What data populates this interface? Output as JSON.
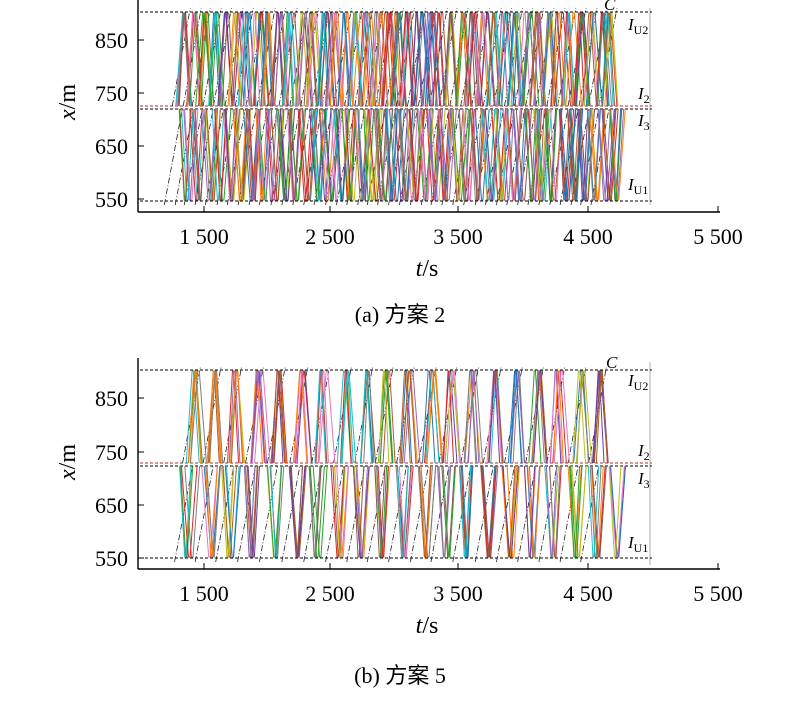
{
  "figure": {
    "panels": [
      {
        "caption": "(a) 方案 2",
        "xlabel_var": "t",
        "xlabel_unit": "/s",
        "ylabel_var": "x",
        "ylabel_unit": "/m",
        "y_ticks": [
          "850",
          "750",
          "650",
          "550"
        ],
        "x_ticks": [
          "1 500",
          "2 500",
          "3 500",
          "4 500",
          "5 500"
        ],
        "annotations": {
          "IU2": "I",
          "IU2_sub": "U2",
          "I2": "I",
          "I2_sub": "2",
          "I3": "I",
          "I3_sub": "3",
          "IU1": "I",
          "IU1_sub": "U1",
          "C": "C"
        }
      },
      {
        "caption": "(b) 方案 5",
        "xlabel_var": "t",
        "xlabel_unit": "/s",
        "ylabel_var": "x",
        "ylabel_unit": "/m",
        "y_ticks": [
          "850",
          "750",
          "650",
          "550"
        ],
        "x_ticks": [
          "1 500",
          "2 500",
          "3 500",
          "4 500",
          "5 500"
        ],
        "annotations": {
          "IU2": "I",
          "IU2_sub": "U2",
          "I2": "I",
          "I2_sub": "2",
          "I3": "I",
          "I3_sub": "3",
          "IU1": "I",
          "IU1_sub": "U1",
          "C": "C"
        }
      }
    ]
  },
  "chart_data": [
    {
      "type": "line",
      "title": "(a) 方案 2",
      "xlabel": "t/s",
      "ylabel": "x/m",
      "xlim": [
        1000,
        5500
      ],
      "ylim": [
        540,
        900
      ],
      "grid": false,
      "reference_lines": [
        {
          "name": "IU2",
          "y": 900
        },
        {
          "name": "I2",
          "y": 725
        },
        {
          "name": "I3",
          "y": 720
        },
        {
          "name": "IU1",
          "y": 545
        }
      ],
      "up_trip_start_times": [
        1300,
        1385,
        1455,
        1540,
        1620,
        1710,
        1790,
        1875,
        1960,
        2040,
        2130,
        2215,
        2300,
        2385,
        2465,
        2555,
        2640,
        2720,
        2805,
        2880,
        2960,
        3045,
        3130,
        3215,
        3300,
        3375,
        3460,
        3545,
        3630,
        3720,
        3800,
        3885,
        3965,
        4050,
        4130,
        4215,
        4300,
        4380,
        4465,
        4540,
        4620
      ],
      "down_trip_start_times": [
        1330,
        1410,
        1500,
        1580,
        1660,
        1745,
        1830,
        1915,
        2000,
        2085,
        2170,
        2255,
        2340,
        2420,
        2510,
        2595,
        2680,
        2760,
        2845,
        2925,
        3005,
        3090,
        3175,
        3255,
        3340,
        3420,
        3505,
        3590,
        3675,
        3760,
        3840,
        3925,
        4010,
        4090,
        4175,
        4255,
        4340,
        4420,
        4505,
        4590,
        4670
      ]
    },
    {
      "type": "line",
      "title": "(b) 方案 5",
      "xlabel": "t/s",
      "ylabel": "x/m",
      "xlim": [
        1000,
        5500
      ],
      "ylim": [
        540,
        900
      ],
      "grid": false,
      "reference_lines": [
        {
          "name": "IU2",
          "y": 900
        },
        {
          "name": "I2",
          "y": 725
        },
        {
          "name": "I3",
          "y": 720
        },
        {
          "name": "IU1",
          "y": 545
        }
      ],
      "up_trip_start_times": [
        1380,
        1540,
        1700,
        1870,
        2040,
        2215,
        2385,
        2555,
        2720,
        2880,
        3045,
        3215,
        3375,
        3545,
        3720,
        3885,
        4050,
        4215,
        4380,
        4540
      ],
      "down_trip_start_times": [
        1330,
        1500,
        1660,
        1830,
        2000,
        2170,
        2340,
        2510,
        2680,
        2845,
        3005,
        3175,
        3340,
        3505,
        3675,
        3840,
        4010,
        4175,
        4340,
        4505,
        4670
      ]
    }
  ]
}
